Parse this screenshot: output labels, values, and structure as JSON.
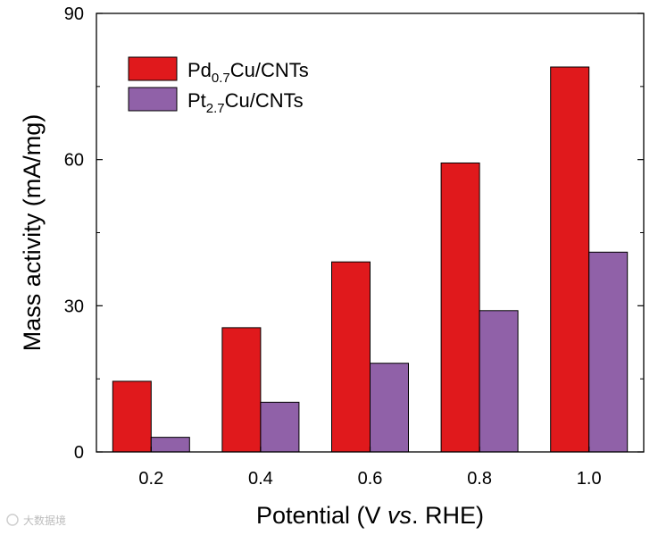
{
  "chart_data": {
    "type": "bar",
    "title": "",
    "xlabel": "Potential (V vs. RHE)",
    "xlabel_parts": {
      "pre": "Potential (V ",
      "italic": "vs",
      "post": ". RHE)"
    },
    "ylabel": "Mass activity (mA/mg)",
    "categories": [
      "0.2",
      "0.4",
      "0.6",
      "0.8",
      "1.0"
    ],
    "ylim": [
      0,
      90
    ],
    "yticks": [
      0,
      30,
      60,
      90
    ],
    "yticks_minor": [
      15,
      45,
      75
    ],
    "series": [
      {
        "name": "Pd0.7Cu/CNTs",
        "base": "Pd",
        "sub": "0.7",
        "suffix": "Cu/CNTs",
        "color": "#e0191c",
        "values": [
          14.5,
          25.5,
          39,
          59.3,
          79
        ]
      },
      {
        "name": "Pt2.7Cu/CNTs",
        "base": "Pt",
        "sub": "2.7",
        "suffix": "Cu/CNTs",
        "color": "#9061a8",
        "values": [
          3,
          10.2,
          18.2,
          29,
          41
        ]
      }
    ],
    "legend_position": "top-left",
    "grid": false
  },
  "watermark": {
    "text": "大数据境"
  }
}
